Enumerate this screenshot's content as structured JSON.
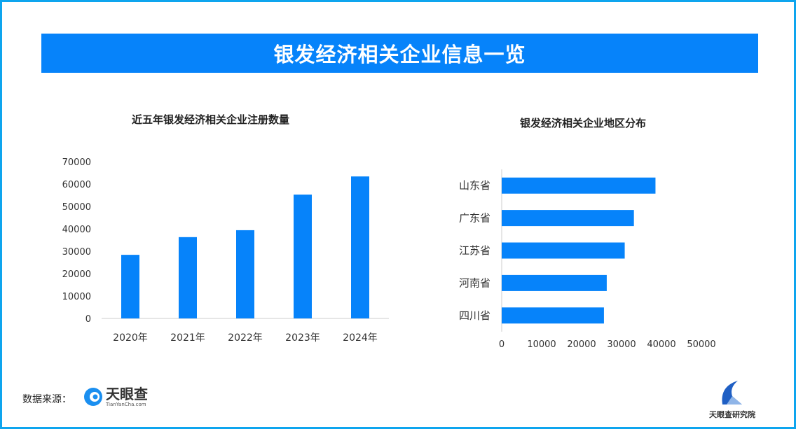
{
  "title": "银发经济相关企业信息一览",
  "colors": {
    "bar": "#0683fa",
    "banner": "#0683fa",
    "frame": "#0ea5ee"
  },
  "chart_data": [
    {
      "type": "bar",
      "title": "近五年银发经济相关企业注册数量",
      "categories": [
        "2020年",
        "2021年",
        "2022年",
        "2023年",
        "2024年"
      ],
      "values": [
        28400,
        36300,
        39400,
        55300,
        63400
      ],
      "ylim": [
        0,
        70000
      ],
      "yticks": [
        "0",
        "10000",
        "20000",
        "30000",
        "40000",
        "50000",
        "60000",
        "70000"
      ],
      "grid": false
    },
    {
      "type": "bar",
      "orientation": "horizontal",
      "title": "银发经济相关企业地区分布",
      "categories": [
        "山东省",
        "广东省",
        "江苏省",
        "河南省",
        "四川省"
      ],
      "values": [
        38500,
        33100,
        30800,
        26300,
        25600
      ],
      "xlim": [
        0,
        50000
      ],
      "xticks": [
        "0",
        "10000",
        "20000",
        "30000",
        "40000",
        "50000"
      ],
      "grid": false
    }
  ],
  "footer": {
    "source_label": "数据来源：",
    "source_logo_cn": "天眼查",
    "source_logo_en": "TianYanCha.com",
    "brand_logo": "天眼查研究院"
  }
}
